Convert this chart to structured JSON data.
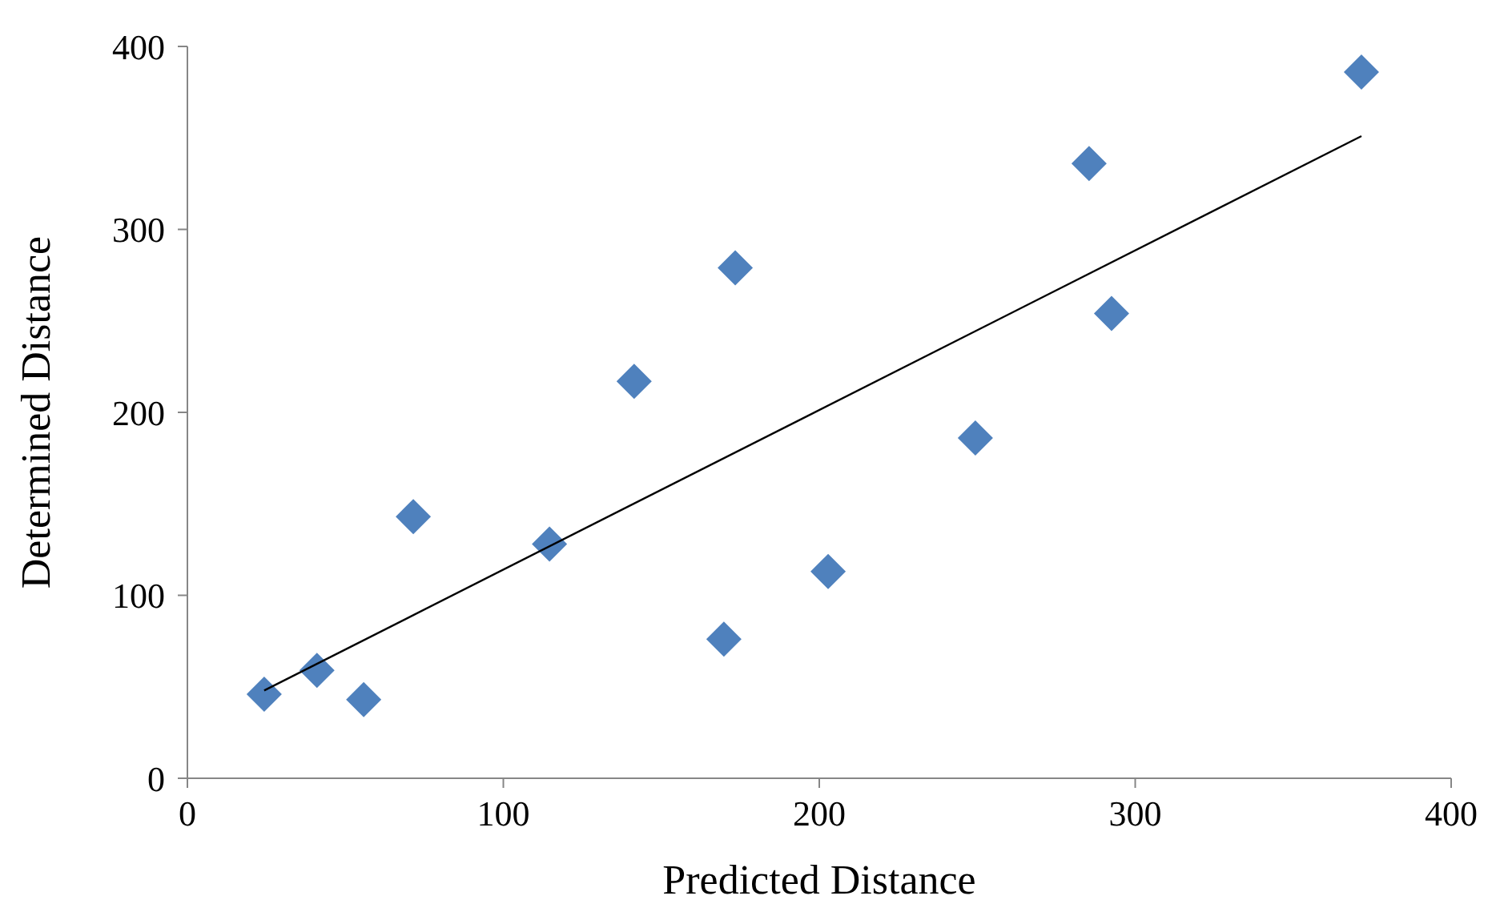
{
  "chart_data": {
    "type": "scatter",
    "xlabel": "Predicted Distance",
    "ylabel": "Determined Distance",
    "xlim": [
      0,
      400
    ],
    "ylim": [
      0,
      400
    ],
    "xticks": [
      0,
      100,
      200,
      300,
      400
    ],
    "yticks": [
      0,
      100,
      200,
      300,
      400
    ],
    "grid": false,
    "legend": false,
    "marker": "diamond",
    "series": [
      {
        "color": "#4f81bd",
        "x": [
          24.3,
          41,
          55.8,
          71.5,
          114.6,
          141.4,
          169.8,
          173.4,
          202.8,
          249.4,
          285.4,
          292.5,
          371.6
        ],
        "values": [
          46,
          59,
          43,
          143,
          128,
          217,
          76,
          279,
          113,
          186,
          336,
          254,
          386
        ]
      },
      {
        "type": "line",
        "color": "#000000",
        "marker": "none",
        "line_style": "solid",
        "x": [
          24.3,
          371.6
        ],
        "values": [
          48,
          351
        ]
      }
    ]
  }
}
